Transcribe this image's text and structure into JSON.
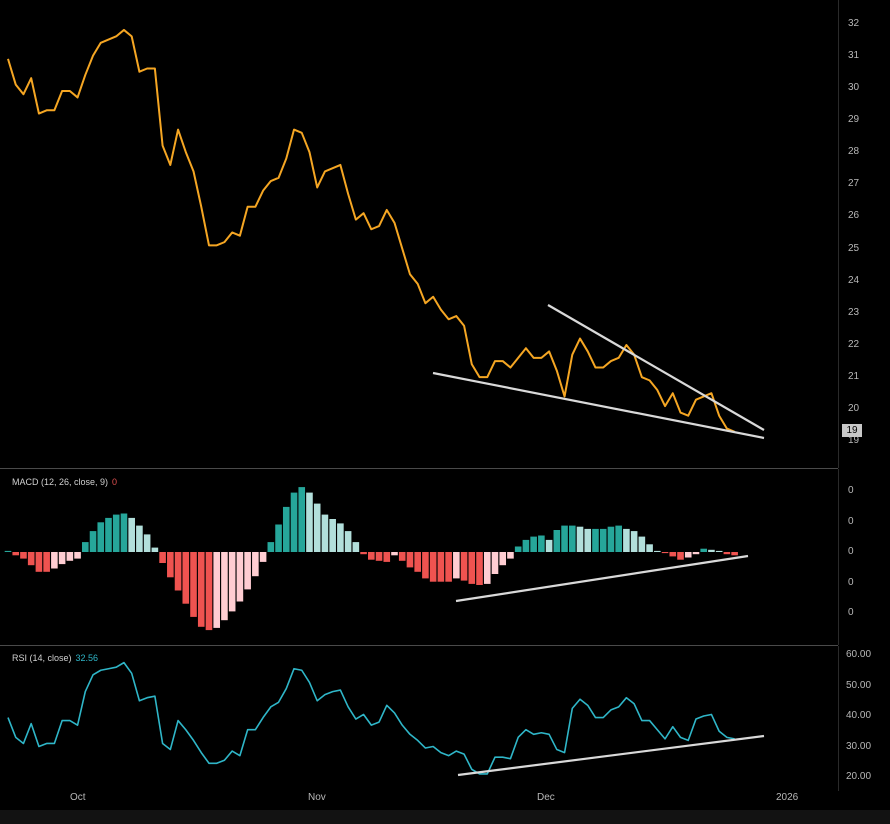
{
  "colors": {
    "background": "#000000",
    "price_line": "#f5a623",
    "trendline": "#d9d9d9",
    "hist_pos_strong": "#26a69a",
    "hist_pos_weak": "#b2dfdb",
    "hist_neg_strong": "#ef5350",
    "hist_neg_weak": "#ffcdd2",
    "rsi_line": "#2fb6c8"
  },
  "price_panel": {
    "last_price_label": "19",
    "axis_ticks": [
      "32",
      "31",
      "30",
      "29",
      "28",
      "27",
      "26",
      "25",
      "24",
      "23",
      "22",
      "21",
      "20",
      "19"
    ]
  },
  "macd_panel": {
    "legend_title": "MACD (12, 26, close, 9)",
    "legend_value": "0",
    "axis_ticks": [
      "0",
      "0",
      "0",
      "0",
      "0"
    ]
  },
  "rsi_panel": {
    "legend_title": "RSI (14, close)",
    "legend_value": "32.56",
    "axis_ticks": [
      "60.00",
      "50.00",
      "40.00",
      "30.00",
      "20.00"
    ]
  },
  "time_axis": [
    "Oct",
    "Nov",
    "Dec",
    "2026"
  ],
  "chart_data": [
    {
      "type": "line",
      "name": "price",
      "x_start": "2025-09-19",
      "ylim": [
        19,
        32.5
      ],
      "values": [
        30.9,
        30.1,
        29.8,
        30.3,
        29.2,
        29.3,
        29.3,
        29.9,
        29.9,
        29.7,
        30.4,
        31.0,
        31.4,
        31.5,
        31.6,
        31.8,
        31.6,
        30.5,
        30.6,
        30.6,
        28.2,
        27.6,
        28.7,
        28.0,
        27.4,
        26.3,
        25.1,
        25.1,
        25.2,
        25.5,
        25.4,
        26.3,
        26.3,
        26.8,
        27.1,
        27.2,
        27.8,
        28.7,
        28.6,
        28.0,
        26.9,
        27.4,
        27.5,
        27.6,
        26.7,
        25.9,
        26.1,
        25.6,
        25.7,
        26.2,
        25.8,
        25.0,
        24.2,
        23.9,
        23.3,
        23.5,
        23.1,
        22.8,
        22.9,
        22.6,
        21.4,
        21.0,
        21.0,
        21.5,
        21.5,
        21.3,
        21.6,
        21.9,
        21.6,
        21.6,
        21.8,
        21.2,
        20.4,
        21.7,
        22.2,
        21.8,
        21.3,
        21.3,
        21.5,
        21.6,
        22.0,
        21.7,
        21.0,
        20.9,
        20.6,
        20.1,
        20.5,
        19.9,
        19.8,
        20.3,
        20.4,
        20.5,
        19.8,
        19.4,
        19.3
      ]
    },
    {
      "type": "bar",
      "name": "macd_histogram",
      "values": [
        0.05,
        -0.15,
        -0.3,
        -0.6,
        -0.9,
        -0.9,
        -0.75,
        -0.55,
        -0.4,
        -0.3,
        0.45,
        0.95,
        1.35,
        1.55,
        1.7,
        1.75,
        1.55,
        1.2,
        0.8,
        0.2,
        -0.5,
        -1.15,
        -1.75,
        -2.35,
        -2.95,
        -3.4,
        -3.55,
        -3.45,
        -3.1,
        -2.7,
        -2.25,
        -1.7,
        -1.1,
        -0.45,
        0.45,
        1.25,
        2.05,
        2.7,
        2.95,
        2.7,
        2.2,
        1.7,
        1.5,
        1.3,
        0.95,
        0.45,
        -0.1,
        -0.35,
        -0.4,
        -0.45,
        -0.15,
        -0.4,
        -0.7,
        -0.9,
        -1.2,
        -1.35,
        -1.35,
        -1.35,
        -1.2,
        -1.3,
        -1.45,
        -1.5,
        -1.45,
        -1.0,
        -0.6,
        -0.3,
        0.25,
        0.55,
        0.7,
        0.75,
        0.55,
        1.0,
        1.2,
        1.2,
        1.15,
        1.05,
        1.05,
        1.05,
        1.15,
        1.2,
        1.05,
        0.95,
        0.7,
        0.35,
        0.05,
        -0.05,
        -0.2,
        -0.35,
        -0.25,
        -0.1,
        0.15,
        0.1,
        0.05,
        -0.1,
        -0.15
      ]
    },
    {
      "type": "line",
      "name": "rsi",
      "ylim": [
        18,
        60
      ],
      "values": [
        39.5,
        33.0,
        31.0,
        37.5,
        30.0,
        31.0,
        31.0,
        38.5,
        38.5,
        37.0,
        48.0,
        53.5,
        55.0,
        55.5,
        56.0,
        57.5,
        54.0,
        45.0,
        46.0,
        46.5,
        31.0,
        29.0,
        38.5,
        35.5,
        32.0,
        28.0,
        24.5,
        24.5,
        25.5,
        28.5,
        27.0,
        35.5,
        35.5,
        39.5,
        43.0,
        44.5,
        49.0,
        55.5,
        55.0,
        51.0,
        45.0,
        47.0,
        48.0,
        48.5,
        43.0,
        39.0,
        40.5,
        37.0,
        38.0,
        43.5,
        41.0,
        37.0,
        34.0,
        32.0,
        29.5,
        30.0,
        28.0,
        27.0,
        28.5,
        27.5,
        22.5,
        21.0,
        21.0,
        26.5,
        26.5,
        26.0,
        33.0,
        35.5,
        34.0,
        34.5,
        34.0,
        29.0,
        28.0,
        42.5,
        45.5,
        43.5,
        39.5,
        39.5,
        42.0,
        43.0,
        46.0,
        44.0,
        38.5,
        38.5,
        35.5,
        32.5,
        36.5,
        33.0,
        32.0,
        39.0,
        40.0,
        40.5,
        35.0,
        33.0,
        32.5
      ]
    }
  ]
}
